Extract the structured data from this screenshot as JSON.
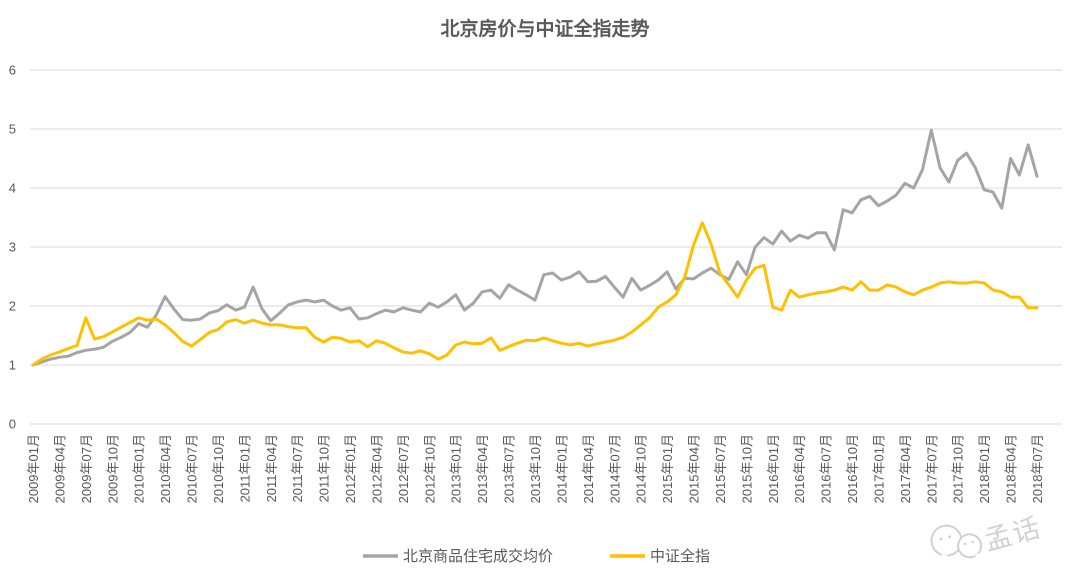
{
  "title": "北京房价与中证全指走势",
  "watermark": {
    "icon": "wechat-icon",
    "text": "孟话"
  },
  "legend": [
    {
      "label": "北京商品住宅成交均价",
      "color": "#A5A5A5"
    },
    {
      "label": "中证全指",
      "color": "#FFC000"
    }
  ],
  "colors": {
    "series_gray": "#A5A5A5",
    "series_gold": "#FFC000",
    "grid": "#D9D9D9",
    "text": "#595959",
    "watermark": "#C9C9C9"
  },
  "chart_data": {
    "type": "line",
    "title": "北京房价与中证全指走势",
    "xlabel": "",
    "ylabel": "",
    "ylim": [
      0,
      6
    ],
    "yticks": [
      0,
      1,
      2,
      3,
      4,
      5,
      6
    ],
    "grid": "horizontal",
    "legend_position": "bottom",
    "x_start": "2009-01",
    "x_end": "2018-07",
    "x_frequency": "monthly",
    "x_tick_interval_months": 3,
    "x_tick_labels": [
      "2009年01月",
      "2009年04月",
      "2009年07月",
      "2009年10月",
      "2010年01月",
      "2010年04月",
      "2010年07月",
      "2010年10月",
      "2011年01月",
      "2011年04月",
      "2011年07月",
      "2011年10月",
      "2012年01月",
      "2012年04月",
      "2012年07月",
      "2012年10月",
      "2013年01月",
      "2013年04月",
      "2013年07月",
      "2013年10月",
      "2014年01月",
      "2014年04月",
      "2014年07月",
      "2014年10月",
      "2015年01月",
      "2015年04月",
      "2015年07月",
      "2015年10月",
      "2016年01月",
      "2016年04月",
      "2016年07月",
      "2016年10月",
      "2017年01月",
      "2017年04月",
      "2017年07月",
      "2017年10月",
      "2018年01月",
      "2018年04月",
      "2018年07月"
    ],
    "series": [
      {
        "name": "北京商品住宅成交均价",
        "color": "#A5A5A5",
        "values": [
          1.0,
          1.05,
          1.1,
          1.13,
          1.15,
          1.21,
          1.25,
          1.27,
          1.3,
          1.4,
          1.47,
          1.55,
          1.7,
          1.64,
          1.85,
          2.16,
          1.95,
          1.77,
          1.76,
          1.78,
          1.88,
          1.92,
          2.02,
          1.93,
          1.98,
          2.32,
          1.95,
          1.75,
          1.88,
          2.02,
          2.07,
          2.1,
          2.07,
          2.1,
          2.0,
          1.93,
          1.97,
          1.78,
          1.8,
          1.87,
          1.93,
          1.9,
          1.97,
          1.93,
          1.9,
          2.05,
          1.98,
          2.07,
          2.19,
          1.93,
          2.05,
          2.24,
          2.27,
          2.13,
          2.36,
          2.27,
          2.19,
          2.1,
          2.53,
          2.56,
          2.44,
          2.49,
          2.58,
          2.41,
          2.42,
          2.5,
          2.32,
          2.15,
          2.47,
          2.27,
          2.35,
          2.44,
          2.58,
          2.29,
          2.47,
          2.46,
          2.56,
          2.64,
          2.53,
          2.45,
          2.75,
          2.53,
          3.0,
          3.16,
          3.05,
          3.27,
          3.1,
          3.2,
          3.15,
          3.24,
          3.24,
          2.95,
          3.63,
          3.58,
          3.8,
          3.86,
          3.7,
          3.78,
          3.88,
          4.08,
          4.0,
          4.31,
          4.98,
          4.34,
          4.1,
          4.47,
          4.59,
          4.34,
          3.97,
          3.93,
          3.66,
          4.5,
          4.22,
          4.73,
          4.2
        ]
      },
      {
        "name": "中证全指",
        "color": "#FFC000",
        "values": [
          1.0,
          1.1,
          1.17,
          1.22,
          1.28,
          1.33,
          1.8,
          1.44,
          1.48,
          1.56,
          1.64,
          1.72,
          1.8,
          1.76,
          1.78,
          1.68,
          1.55,
          1.4,
          1.32,
          1.43,
          1.55,
          1.6,
          1.73,
          1.77,
          1.71,
          1.76,
          1.71,
          1.68,
          1.68,
          1.65,
          1.63,
          1.63,
          1.47,
          1.39,
          1.47,
          1.45,
          1.39,
          1.41,
          1.31,
          1.41,
          1.37,
          1.29,
          1.22,
          1.2,
          1.24,
          1.19,
          1.1,
          1.17,
          1.34,
          1.39,
          1.36,
          1.37,
          1.46,
          1.25,
          1.31,
          1.37,
          1.42,
          1.41,
          1.46,
          1.41,
          1.37,
          1.34,
          1.37,
          1.32,
          1.36,
          1.39,
          1.42,
          1.47,
          1.56,
          1.68,
          1.8,
          1.98,
          2.07,
          2.19,
          2.49,
          3.03,
          3.41,
          3.05,
          2.56,
          2.36,
          2.15,
          2.44,
          2.64,
          2.69,
          1.98,
          1.93,
          2.27,
          2.15,
          2.19,
          2.22,
          2.24,
          2.27,
          2.32,
          2.27,
          2.41,
          2.27,
          2.27,
          2.36,
          2.32,
          2.24,
          2.19,
          2.27,
          2.32,
          2.39,
          2.41,
          2.39,
          2.39,
          2.41,
          2.39,
          2.27,
          2.24,
          2.15,
          2.15,
          1.97,
          1.97
        ]
      }
    ]
  }
}
